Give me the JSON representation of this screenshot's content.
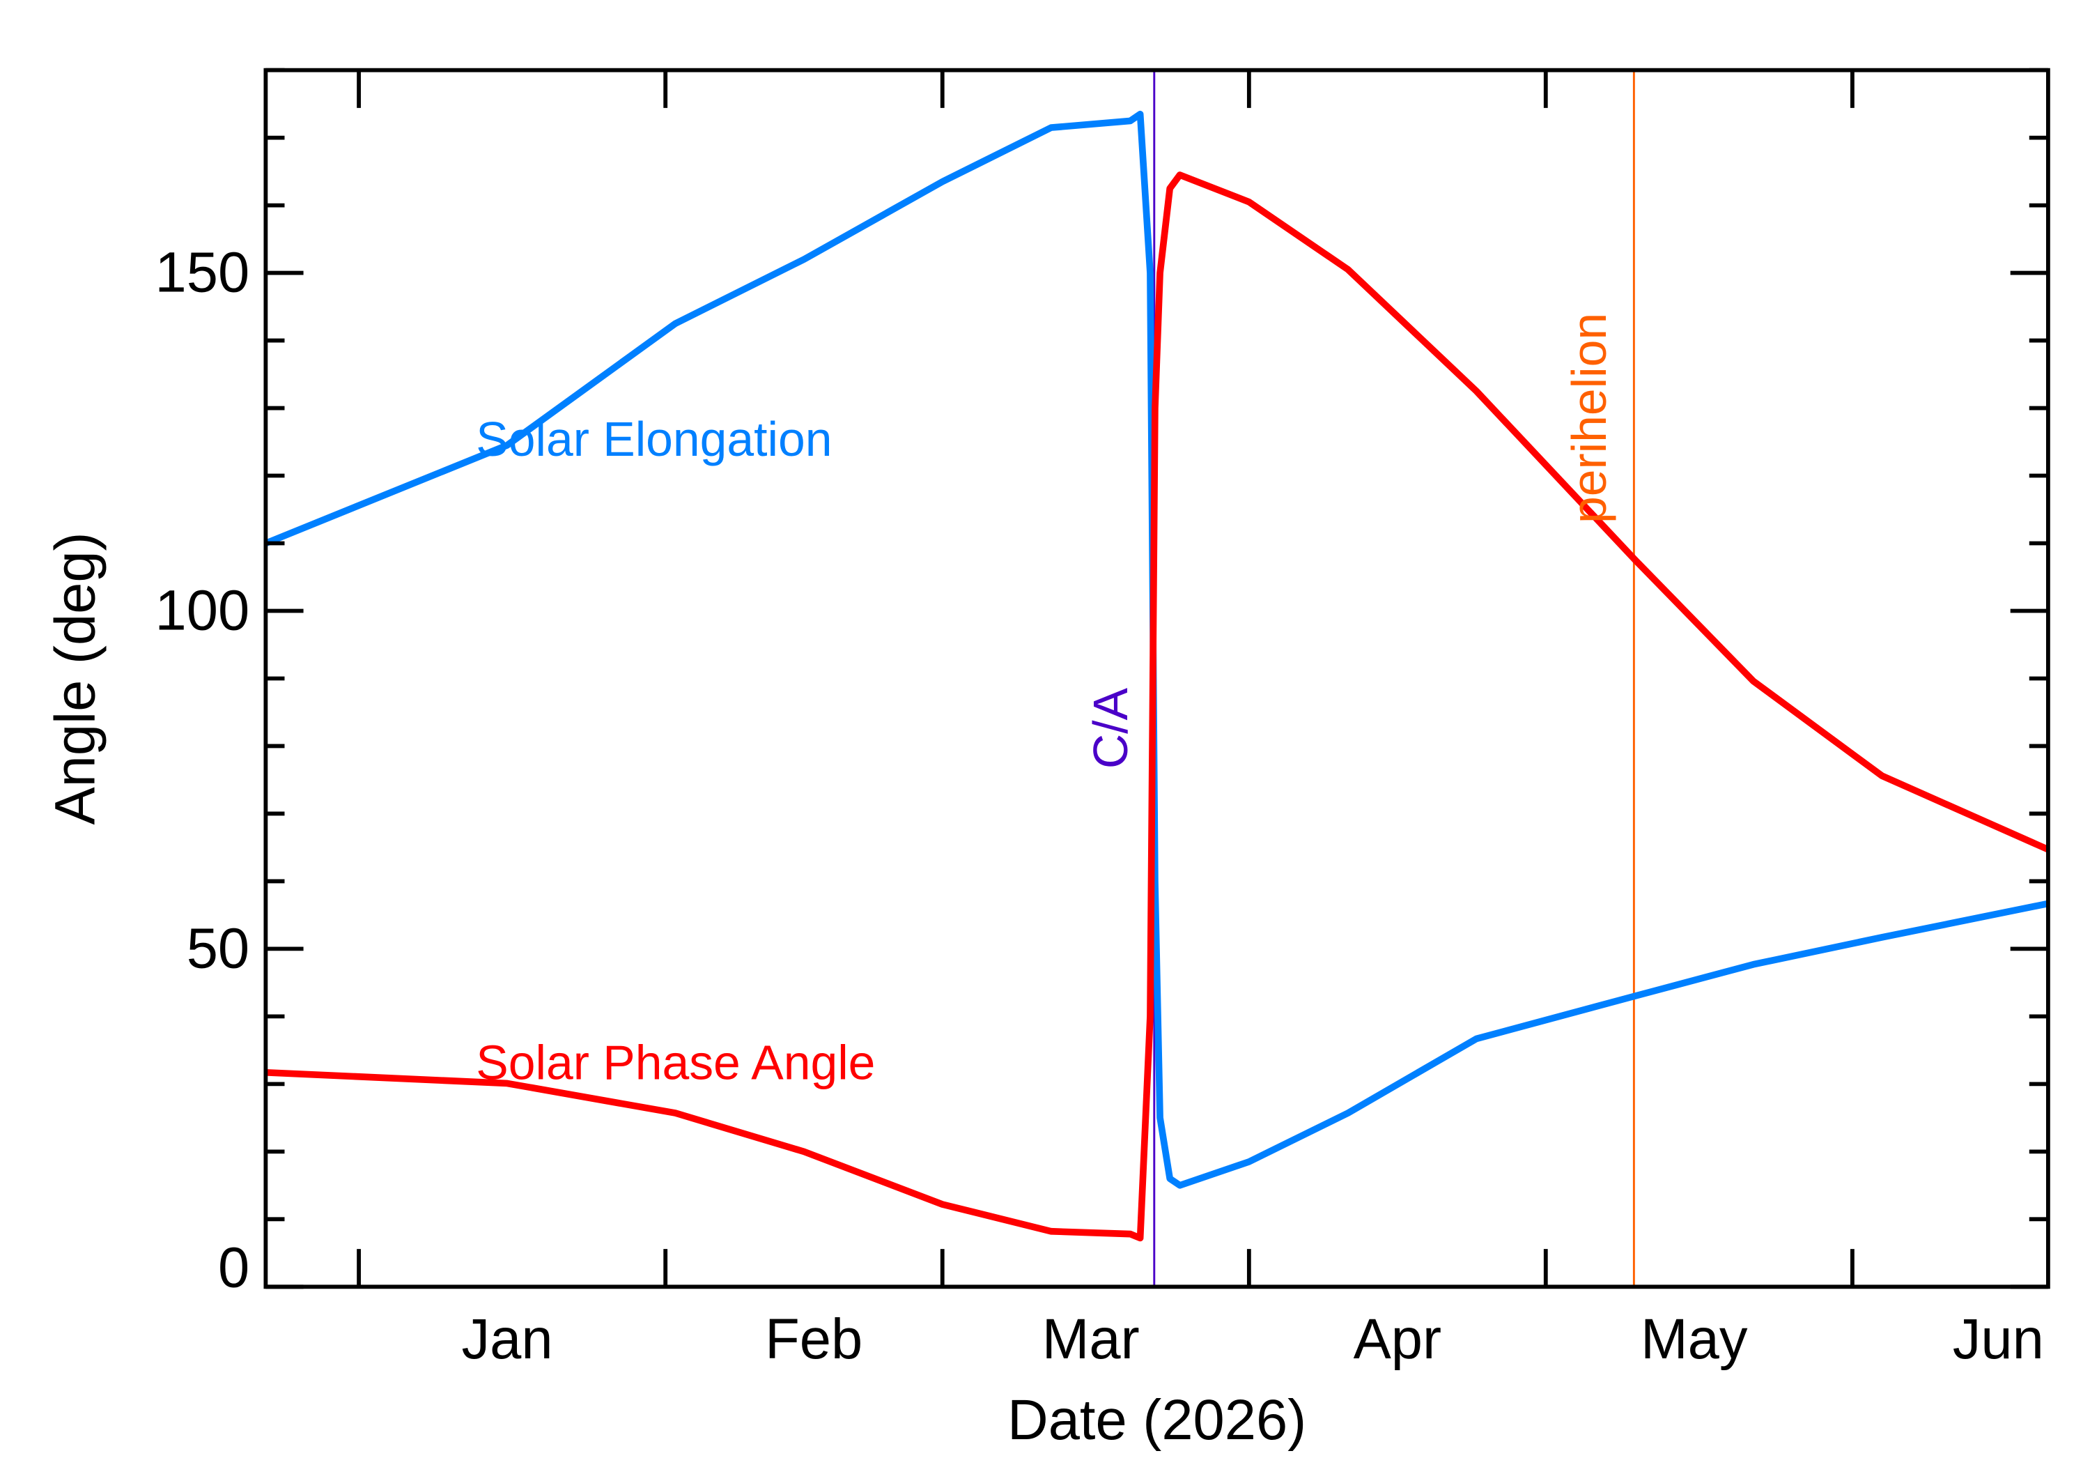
{
  "chart_data": {
    "type": "line",
    "xlabel": "Date (2026)",
    "ylabel": "Angle (deg)",
    "xlim": [
      "2025-12-22T14:00",
      "2026-06-20T19:00"
    ],
    "ylim": [
      0,
      180
    ],
    "y_major_ticks": [
      0,
      50,
      100,
      150
    ],
    "y_minor_step": 10,
    "x_ticks": [
      {
        "date": "2026-01-01",
        "label": "Jan"
      },
      {
        "date": "2026-02-01",
        "label": "Feb"
      },
      {
        "date": "2026-03-01",
        "label": "Mar"
      },
      {
        "date": "2026-04-01",
        "label": "Apr"
      },
      {
        "date": "2026-05-01",
        "label": "May"
      },
      {
        "date": "2026-06-01",
        "label": "Jun"
      }
    ],
    "grid": false,
    "x": [
      "2025-12-22T14:00",
      "2026-01-16",
      "2026-02-02",
      "2026-02-15",
      "2026-03-01",
      "2026-03-12",
      "2026-03-20",
      "2026-03-21",
      "2026-03-22T00:00",
      "2026-03-22T12:00",
      "2026-03-23",
      "2026-03-24",
      "2026-03-25",
      "2026-04-01",
      "2026-04-11",
      "2026-04-24",
      "2026-05-10",
      "2026-05-22",
      "2026-06-04",
      "2026-06-20T19:00"
    ],
    "series": [
      {
        "name": "Solar Elongation",
        "color": "#0080ff",
        "values": [
          110,
          124.5,
          142.5,
          152,
          163.5,
          171.5,
          172.5,
          173.5,
          150,
          60,
          25,
          16,
          15,
          18.5,
          25.7,
          36.7,
          43,
          47.7,
          51.7,
          56.7
        ]
      },
      {
        "name": "Solar Phase Angle",
        "color": "#ff0000",
        "values": [
          31.7,
          30.1,
          25.7,
          20,
          12.2,
          8.2,
          7.8,
          7.2,
          40,
          130,
          150,
          162.5,
          164.5,
          160.5,
          150.5,
          132.5,
          107.6,
          89.6,
          75.6,
          64.7
        ]
      }
    ],
    "events": [
      {
        "label": "C/A",
        "date": "2026-03-22T10:00",
        "color": "#4a00c8"
      },
      {
        "label": "perihelion",
        "date": "2026-05-09T22:00",
        "color": "#ff6000"
      }
    ]
  }
}
